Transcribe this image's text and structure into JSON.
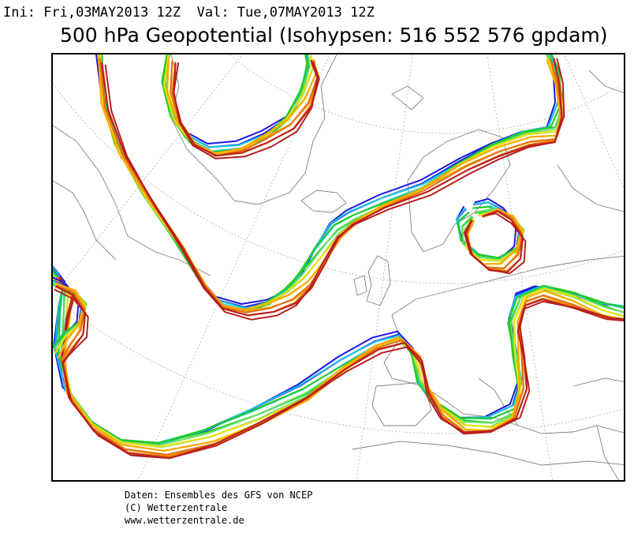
{
  "header": {
    "init_line": "Ini: Fri,03MAY2013 12Z  Val: Tue,07MAY2013 12Z",
    "title": "500 hPa Geopotential (Isohypsen: 516 552 576 gpdam)"
  },
  "map": {
    "projection": "polar-stereographic",
    "region": "North Atlantic / Europe",
    "ensemble_colors": [
      "#1a1ae6",
      "#19c8e6",
      "#22cc22",
      "#66e066",
      "#f0e000",
      "#ffa500",
      "#e07010",
      "#b81e1e"
    ],
    "land_outline_color": "#808080",
    "grid_color": "#9a9a9a"
  },
  "footer": {
    "line1": "Daten: Ensembles des GFS von NCEP",
    "line2": "(C) Wetterzentrale",
    "line3": "www.wetterzentrale.de"
  }
}
